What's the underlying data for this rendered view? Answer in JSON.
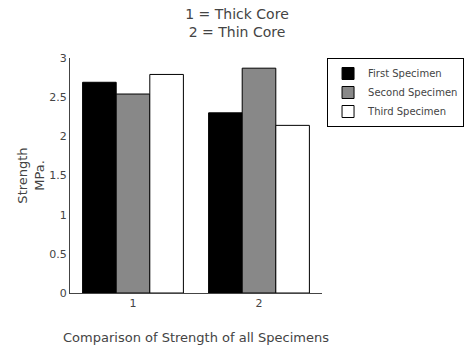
{
  "chart_data": {
    "type": "bar",
    "title": "1 = Thick Core",
    "subtitle": "2 = Thin Core",
    "x_label": "Comparison of Strength of all Specimens",
    "y_label": "Strength\nMPa.",
    "categories": [
      "1",
      "2"
    ],
    "series": [
      {
        "name": "First Specimen",
        "color": "#000000",
        "values": [
          2.69,
          2.3
        ]
      },
      {
        "name": "Second Specimen",
        "color": "#888888",
        "values": [
          2.54,
          2.87
        ]
      },
      {
        "name": "Third Specimen",
        "color": "#ffffff",
        "values": [
          2.79,
          2.14
        ]
      }
    ],
    "ylim": [
      0,
      3.0
    ],
    "yticks": [
      0,
      0.5,
      1,
      1.5,
      2,
      2.5,
      3
    ],
    "grid": false,
    "legend": "upper right"
  }
}
